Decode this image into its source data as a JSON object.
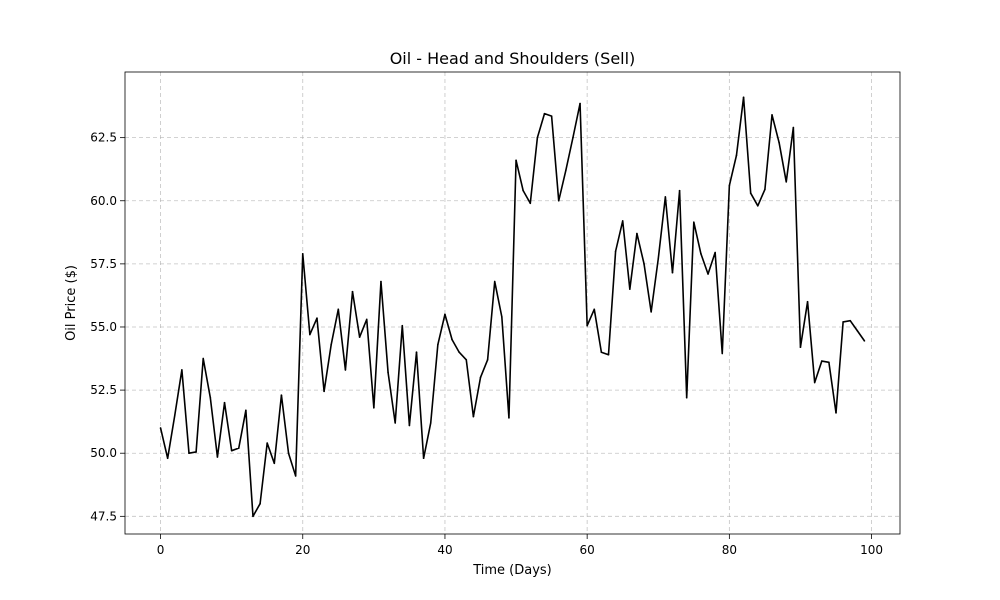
{
  "chart_data": {
    "type": "line",
    "title": "Oil - Head and Shoulders (Sell)",
    "xlabel": "Time (Days)",
    "ylabel": "Oil Price ($)",
    "xlim": [
      -5,
      104
    ],
    "ylim": [
      46.8,
      65.1
    ],
    "xticks": [
      0,
      20,
      40,
      60,
      80,
      100
    ],
    "xtick_labels": [
      "0",
      "20",
      "40",
      "60",
      "80",
      "100"
    ],
    "yticks": [
      47.5,
      50.0,
      52.5,
      55.0,
      57.5,
      60.0,
      62.5
    ],
    "ytick_labels": [
      "47.5",
      "50.0",
      "52.5",
      "55.0",
      "57.5",
      "60.0",
      "62.5"
    ],
    "grid": true,
    "legend": "none",
    "series": [
      {
        "color": "#000000",
        "x": [
          0,
          1,
          2,
          3,
          4,
          5,
          6,
          7,
          8,
          9,
          10,
          11,
          12,
          13,
          14,
          15,
          16,
          17,
          18,
          19,
          20,
          21,
          22,
          23,
          24,
          25,
          26,
          27,
          28,
          29,
          30,
          31,
          32,
          33,
          34,
          35,
          36,
          37,
          38,
          39,
          40,
          41,
          42,
          43,
          44,
          45,
          46,
          47,
          48,
          49,
          50,
          51,
          52,
          53,
          54,
          55,
          56,
          57,
          58,
          59,
          60,
          61,
          62,
          63,
          64,
          65,
          66,
          67,
          68,
          69,
          70,
          71,
          72,
          73,
          74,
          75,
          76,
          77,
          78,
          79,
          80,
          81,
          82,
          83,
          84,
          85,
          86,
          87,
          88,
          89,
          90,
          91,
          92,
          93,
          94,
          95,
          96,
          97,
          98,
          99
        ],
        "y": [
          51.0,
          49.8,
          51.5,
          53.3,
          50.0,
          50.05,
          53.75,
          52.2,
          49.85,
          52.0,
          50.1,
          50.2,
          51.7,
          47.5,
          48.0,
          50.4,
          49.6,
          52.3,
          50.0,
          49.1,
          57.9,
          54.7,
          55.35,
          52.45,
          54.3,
          55.7,
          53.3,
          56.4,
          54.6,
          55.3,
          51.8,
          56.8,
          53.2,
          51.2,
          55.05,
          51.1,
          54.0,
          49.8,
          51.2,
          54.3,
          55.5,
          54.5,
          54.0,
          53.7,
          51.45,
          53.0,
          53.7,
          56.8,
          55.4,
          51.4,
          61.6,
          60.4,
          59.9,
          62.5,
          63.45,
          63.35,
          60.0,
          61.2,
          62.5,
          63.85,
          55.05,
          55.7,
          54.0,
          53.9,
          58.0,
          59.2,
          56.5,
          58.7,
          57.5,
          55.6,
          57.7,
          60.15,
          57.15,
          60.4,
          52.2,
          59.15,
          57.9,
          57.1,
          57.95,
          53.95,
          60.6,
          61.8,
          64.1,
          60.3,
          59.8,
          60.45,
          63.4,
          62.3,
          60.75,
          62.9,
          54.2,
          56.0,
          52.8,
          53.65,
          53.6,
          51.6,
          55.2,
          55.25,
          54.85,
          54.45
        ]
      }
    ]
  }
}
